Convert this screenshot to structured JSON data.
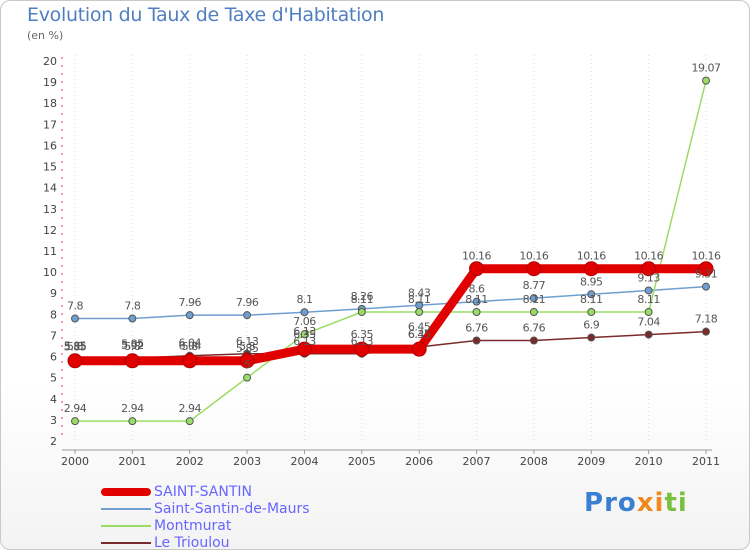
{
  "chart_data": {
    "type": "line",
    "title": "Evolution du Taux de Taxe d'Habitation",
    "subtitle": "(en %)",
    "xlabel": "",
    "ylabel": "",
    "categories": [
      "2000",
      "2001",
      "2002",
      "2003",
      "2004",
      "2005",
      "2006",
      "2007",
      "2008",
      "2009",
      "2010",
      "2011"
    ],
    "ylim": [
      2,
      20
    ],
    "yticks": [
      2,
      3,
      4,
      5,
      6,
      7,
      8,
      9,
      10,
      11,
      12,
      13,
      14,
      15,
      16,
      17,
      18,
      19,
      20
    ],
    "series": [
      {
        "name": "SAINT-SANTIN",
        "color": "#e00000",
        "values": [
          5.8,
          5.8,
          5.8,
          5.8,
          6.35,
          6.35,
          6.35,
          10.16,
          10.16,
          10.16,
          10.16,
          10.16
        ],
        "labels": [
          "5.8",
          "5.8",
          "5.8",
          "5.8",
          "6.35",
          "6.35",
          "6.35",
          "10.16",
          "10.16",
          "10.16",
          "10.16",
          "10.16"
        ]
      },
      {
        "name": "Saint-Santin-de-Maurs",
        "color": "#6f9fd0",
        "values": [
          7.8,
          7.8,
          7.96,
          7.96,
          8.1,
          8.26,
          8.43,
          8.6,
          8.77,
          8.95,
          9.13,
          9.31
        ],
        "labels": [
          "7.8",
          "7.8",
          "7.96",
          "7.96",
          "8.1",
          "8.26",
          "8.43",
          "8.6",
          "8.77",
          "8.95",
          "9.13",
          "9.31"
        ]
      },
      {
        "name": "Montmurat",
        "color": "#99dd66",
        "values": [
          2.94,
          2.94,
          2.94,
          5,
          7.06,
          8.11,
          8.11,
          8.11,
          8.11,
          8.11,
          8.11,
          19.07
        ],
        "labels": [
          "2.94",
          "2.94",
          "2.94",
          "5",
          "7.06",
          "8.11",
          "8.11",
          "8.11",
          "8.11",
          "8.11",
          "8.11",
          "19.07"
        ]
      },
      {
        "name": "Le Trioulou",
        "color": "#7a2a2a",
        "values": [
          5.85,
          5.92,
          6.04,
          6.13,
          6.13,
          6.13,
          6.45,
          6.76,
          6.76,
          6.9,
          7.04,
          7.18
        ],
        "labels": [
          "5.85",
          "5.92",
          "6.04",
          "6.13",
          "6.13",
          "6.13",
          "6.45",
          "6.76",
          "6.76",
          "6.9",
          "7.04",
          "7.18"
        ]
      }
    ],
    "extra_labels": [
      "5.85",
      "5.85",
      "6.04",
      "5.85",
      "6.13",
      "6.45"
    ],
    "legend": "bottom-left"
  },
  "brand": {
    "logo_letters": [
      "P",
      "r",
      "o",
      "x",
      "i",
      "t",
      "i"
    ],
    "logo_colors": [
      "#3a7fd0",
      "#3a7fd0",
      "#3a7fd0",
      "#f08a1c",
      "#f08a1c",
      "#7ac142",
      "#7ac142"
    ]
  }
}
